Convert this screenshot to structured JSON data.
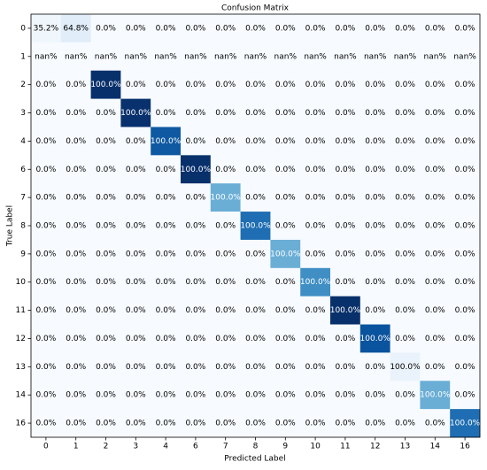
{
  "chart_data": {
    "type": "heatmap",
    "title": "Confusion Matrix",
    "x_label": "Predicted Label",
    "y_label": "True Label",
    "x_categories": [
      0,
      1,
      2,
      3,
      4,
      6,
      7,
      8,
      9,
      10,
      11,
      12,
      13,
      14,
      16
    ],
    "y_categories": [
      0,
      1,
      2,
      3,
      4,
      6,
      7,
      8,
      9,
      10,
      11,
      12,
      13,
      14,
      16
    ],
    "values": [
      [
        35.2,
        64.8,
        0,
        0,
        0,
        0,
        0,
        0,
        0,
        0,
        0,
        0,
        0,
        0,
        0
      ],
      [
        null,
        null,
        null,
        null,
        null,
        null,
        null,
        null,
        null,
        null,
        null,
        null,
        null,
        null,
        null
      ],
      [
        0,
        0,
        100,
        0,
        0,
        0,
        0,
        0,
        0,
        0,
        0,
        0,
        0,
        0,
        0
      ],
      [
        0,
        0,
        0,
        100,
        0,
        0,
        0,
        0,
        0,
        0,
        0,
        0,
        0,
        0,
        0
      ],
      [
        0,
        0,
        0,
        0,
        100,
        0,
        0,
        0,
        0,
        0,
        0,
        0,
        0,
        0,
        0
      ],
      [
        0,
        0,
        0,
        0,
        0,
        100,
        0,
        0,
        0,
        0,
        0,
        0,
        0,
        0,
        0
      ],
      [
        0,
        0,
        0,
        0,
        0,
        0,
        100,
        0,
        0,
        0,
        0,
        0,
        0,
        0,
        0
      ],
      [
        0,
        0,
        0,
        0,
        0,
        0,
        0,
        100,
        0,
        0,
        0,
        0,
        0,
        0,
        0
      ],
      [
        0,
        0,
        0,
        0,
        0,
        0,
        0,
        0,
        100,
        0,
        0,
        0,
        0,
        0,
        0
      ],
      [
        0,
        0,
        0,
        0,
        0,
        0,
        0,
        0,
        0,
        100,
        0,
        0,
        0,
        0,
        0
      ],
      [
        0,
        0,
        0,
        0,
        0,
        0,
        0,
        0,
        0,
        0,
        100,
        0,
        0,
        0,
        0
      ],
      [
        0,
        0,
        0,
        0,
        0,
        0,
        0,
        0,
        0,
        0,
        0,
        100,
        0,
        0,
        0
      ],
      [
        0,
        0,
        0,
        0,
        0,
        0,
        0,
        0,
        0,
        0,
        0,
        0,
        100,
        0,
        0
      ],
      [
        0,
        0,
        0,
        0,
        0,
        0,
        0,
        0,
        0,
        0,
        0,
        0,
        0,
        100,
        0
      ],
      [
        0,
        0,
        0,
        0,
        0,
        0,
        0,
        0,
        0,
        0,
        0,
        0,
        0,
        0,
        100
      ]
    ],
    "value_labels": [
      [
        "35.2%",
        "64.8%",
        "0.0%",
        "0.0%",
        "0.0%",
        "0.0%",
        "0.0%",
        "0.0%",
        "0.0%",
        "0.0%",
        "0.0%",
        "0.0%",
        "0.0%",
        "0.0%",
        "0.0%"
      ],
      [
        "nan%",
        "nan%",
        "nan%",
        "nan%",
        "nan%",
        "nan%",
        "nan%",
        "nan%",
        "nan%",
        "nan%",
        "nan%",
        "nan%",
        "nan%",
        "nan%",
        "nan%"
      ],
      [
        "0.0%",
        "0.0%",
        "100.0%",
        "0.0%",
        "0.0%",
        "0.0%",
        "0.0%",
        "0.0%",
        "0.0%",
        "0.0%",
        "0.0%",
        "0.0%",
        "0.0%",
        "0.0%",
        "0.0%"
      ],
      [
        "0.0%",
        "0.0%",
        "0.0%",
        "100.0%",
        "0.0%",
        "0.0%",
        "0.0%",
        "0.0%",
        "0.0%",
        "0.0%",
        "0.0%",
        "0.0%",
        "0.0%",
        "0.0%",
        "0.0%"
      ],
      [
        "0.0%",
        "0.0%",
        "0.0%",
        "0.0%",
        "100.0%",
        "0.0%",
        "0.0%",
        "0.0%",
        "0.0%",
        "0.0%",
        "0.0%",
        "0.0%",
        "0.0%",
        "0.0%",
        "0.0%"
      ],
      [
        "0.0%",
        "0.0%",
        "0.0%",
        "0.0%",
        "0.0%",
        "100.0%",
        "0.0%",
        "0.0%",
        "0.0%",
        "0.0%",
        "0.0%",
        "0.0%",
        "0.0%",
        "0.0%",
        "0.0%"
      ],
      [
        "0.0%",
        "0.0%",
        "0.0%",
        "0.0%",
        "0.0%",
        "0.0%",
        "100.0%",
        "0.0%",
        "0.0%",
        "0.0%",
        "0.0%",
        "0.0%",
        "0.0%",
        "0.0%",
        "0.0%"
      ],
      [
        "0.0%",
        "0.0%",
        "0.0%",
        "0.0%",
        "0.0%",
        "0.0%",
        "0.0%",
        "100.0%",
        "0.0%",
        "0.0%",
        "0.0%",
        "0.0%",
        "0.0%",
        "0.0%",
        "0.0%"
      ],
      [
        "0.0%",
        "0.0%",
        "0.0%",
        "0.0%",
        "0.0%",
        "0.0%",
        "0.0%",
        "0.0%",
        "100.0%",
        "0.0%",
        "0.0%",
        "0.0%",
        "0.0%",
        "0.0%",
        "0.0%"
      ],
      [
        "0.0%",
        "0.0%",
        "0.0%",
        "0.0%",
        "0.0%",
        "0.0%",
        "0.0%",
        "0.0%",
        "0.0%",
        "100.0%",
        "0.0%",
        "0.0%",
        "0.0%",
        "0.0%",
        "0.0%"
      ],
      [
        "0.0%",
        "0.0%",
        "0.0%",
        "0.0%",
        "0.0%",
        "0.0%",
        "0.0%",
        "0.0%",
        "0.0%",
        "0.0%",
        "100.0%",
        "0.0%",
        "0.0%",
        "0.0%",
        "0.0%"
      ],
      [
        "0.0%",
        "0.0%",
        "0.0%",
        "0.0%",
        "0.0%",
        "0.0%",
        "0.0%",
        "0.0%",
        "0.0%",
        "0.0%",
        "0.0%",
        "100.0%",
        "0.0%",
        "0.0%",
        "0.0%"
      ],
      [
        "0.0%",
        "0.0%",
        "0.0%",
        "0.0%",
        "0.0%",
        "0.0%",
        "0.0%",
        "0.0%",
        "0.0%",
        "0.0%",
        "0.0%",
        "0.0%",
        "100.0%",
        "0.0%",
        "0.0%"
      ],
      [
        "0.0%",
        "0.0%",
        "0.0%",
        "0.0%",
        "0.0%",
        "0.0%",
        "0.0%",
        "0.0%",
        "0.0%",
        "0.0%",
        "0.0%",
        "0.0%",
        "0.0%",
        "100.0%",
        "0.0%"
      ],
      [
        "0.0%",
        "0.0%",
        "0.0%",
        "0.0%",
        "0.0%",
        "0.0%",
        "0.0%",
        "0.0%",
        "0.0%",
        "0.0%",
        "0.0%",
        "0.0%",
        "0.0%",
        "0.0%",
        "100.0%"
      ]
    ],
    "background_color": "#f7fbff",
    "cell_colors": [
      [
        "#eff6fc",
        "#e1edf8",
        null,
        null,
        null,
        null,
        null,
        null,
        null,
        null,
        null,
        null,
        null,
        null,
        null
      ],
      [
        null,
        null,
        null,
        null,
        null,
        null,
        null,
        null,
        null,
        null,
        null,
        null,
        null,
        null,
        null
      ],
      [
        null,
        null,
        "#08306b",
        null,
        null,
        null,
        null,
        null,
        null,
        null,
        null,
        null,
        null,
        null,
        null
      ],
      [
        null,
        null,
        null,
        "#08316d",
        null,
        null,
        null,
        null,
        null,
        null,
        null,
        null,
        null,
        null,
        null
      ],
      [
        null,
        null,
        null,
        null,
        "#0e59a2",
        null,
        null,
        null,
        null,
        null,
        null,
        null,
        null,
        null,
        null
      ],
      [
        null,
        null,
        null,
        null,
        null,
        "#08306b",
        null,
        null,
        null,
        null,
        null,
        null,
        null,
        null,
        null
      ],
      [
        null,
        null,
        null,
        null,
        null,
        null,
        "#6aaed6",
        null,
        null,
        null,
        null,
        null,
        null,
        null,
        null
      ],
      [
        null,
        null,
        null,
        null,
        null,
        null,
        null,
        "#1f6eb3",
        null,
        null,
        null,
        null,
        null,
        null,
        null
      ],
      [
        null,
        null,
        null,
        null,
        null,
        null,
        null,
        null,
        "#6aaed6",
        null,
        null,
        null,
        null,
        null,
        null
      ],
      [
        null,
        null,
        null,
        null,
        null,
        null,
        null,
        null,
        null,
        "#3f8fc5",
        null,
        null,
        null,
        null,
        null
      ],
      [
        null,
        null,
        null,
        null,
        null,
        null,
        null,
        null,
        null,
        null,
        "#08306b",
        null,
        null,
        null,
        null
      ],
      [
        null,
        null,
        null,
        null,
        null,
        null,
        null,
        null,
        null,
        null,
        null,
        "#0a539e",
        null,
        null,
        null
      ],
      [
        null,
        null,
        null,
        null,
        null,
        null,
        null,
        null,
        null,
        null,
        null,
        null,
        "#eaf3fb",
        null,
        null
      ],
      [
        null,
        null,
        null,
        null,
        null,
        null,
        null,
        null,
        null,
        null,
        null,
        null,
        null,
        "#6aaed6",
        null
      ],
      [
        null,
        null,
        null,
        null,
        null,
        null,
        null,
        null,
        null,
        null,
        null,
        null,
        null,
        null,
        "#1f6eb3"
      ]
    ]
  }
}
